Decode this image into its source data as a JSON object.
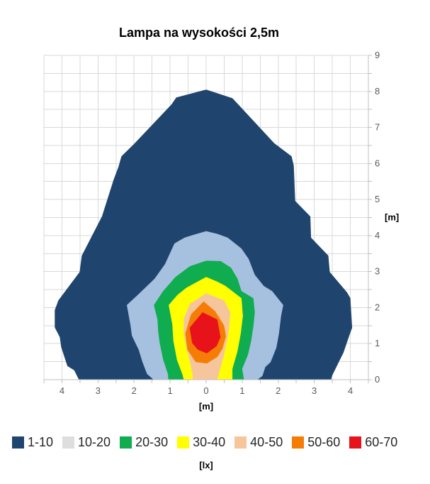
{
  "chart_data": {
    "type": "contour",
    "title": "Lampa na wysokości 2,5m",
    "xlabel": "[m]",
    "ylabel": "[m]",
    "unit_label": "[lx]",
    "x_range": [
      -4.5,
      4.5
    ],
    "y_range": [
      0,
      9
    ],
    "grid_step": 0.5,
    "grid_on": true,
    "grid_color": "#D9D9D9",
    "axis_color": "#BFBFBF",
    "tick_label_color": "#595959",
    "x_tick_values": [
      -4,
      -3,
      -2,
      -1,
      0,
      1,
      2,
      3,
      4
    ],
    "x_tick_labels": [
      "4",
      "3",
      "2",
      "1",
      "0",
      "1",
      "2",
      "3",
      "4"
    ],
    "y_tick_values": [
      0,
      1,
      2,
      3,
      4,
      5,
      6,
      7,
      8,
      9
    ],
    "y_tick_labels": [
      "0",
      "1",
      "2",
      "3",
      "4",
      "5",
      "6",
      "7",
      "8",
      "9"
    ],
    "legend_position": "bottom",
    "bands": [
      {
        "label": "1-10",
        "value_range": [
          1,
          10
        ],
        "color": "#1F456E",
        "legend_color": "#1F456E",
        "polygon": [
          [
            -3.53,
            0
          ],
          [
            -3.66,
            0.26
          ],
          [
            -3.85,
            0.38
          ],
          [
            -4.02,
            0.9
          ],
          [
            -4.06,
            1.18
          ],
          [
            -4.2,
            1.45
          ],
          [
            -4.2,
            1.93
          ],
          [
            -4.1,
            2.2
          ],
          [
            -3.51,
            2.99
          ],
          [
            -3.45,
            3.44
          ],
          [
            -2.89,
            4.53
          ],
          [
            -2.56,
            5.57
          ],
          [
            -2.43,
            5.91
          ],
          [
            -2.35,
            6.2
          ],
          [
            -2.0,
            6.54
          ],
          [
            -0.96,
            7.64
          ],
          [
            -0.83,
            7.83
          ],
          [
            0.0,
            8.05
          ],
          [
            0.73,
            7.81
          ],
          [
            0.89,
            7.64
          ],
          [
            1.89,
            6.56
          ],
          [
            2.37,
            6.2
          ],
          [
            2.43,
            5.94
          ],
          [
            2.47,
            4.96
          ],
          [
            2.89,
            4.53
          ],
          [
            2.91,
            3.94
          ],
          [
            3.39,
            3.44
          ],
          [
            3.43,
            2.99
          ],
          [
            3.91,
            2.42
          ],
          [
            4.0,
            2.26
          ],
          [
            4.05,
            1.44
          ],
          [
            3.97,
            1.22
          ],
          [
            3.81,
            0.75
          ],
          [
            3.68,
            0.49
          ],
          [
            3.49,
            0.1
          ],
          [
            3.47,
            0
          ]
        ]
      },
      {
        "label": "10-20",
        "value_range": [
          10,
          20
        ],
        "color": "#A6C0DF",
        "legend_color": "#DEDEDE",
        "polygon": [
          [
            -1.46,
            0
          ],
          [
            -1.64,
            0.16
          ],
          [
            -1.77,
            0.5
          ],
          [
            -1.87,
            0.83
          ],
          [
            -2.06,
            1.22
          ],
          [
            -2.1,
            1.52
          ],
          [
            -2.2,
            2.07
          ],
          [
            -1.9,
            2.35
          ],
          [
            -1.43,
            2.8
          ],
          [
            -1.14,
            3.21
          ],
          [
            -0.88,
            3.78
          ],
          [
            -0.6,
            3.94
          ],
          [
            -0.35,
            4.02
          ],
          [
            0.0,
            4.12
          ],
          [
            0.3,
            4.05
          ],
          [
            0.6,
            3.94
          ],
          [
            0.98,
            3.64
          ],
          [
            1.18,
            3.35
          ],
          [
            1.35,
            2.91
          ],
          [
            1.6,
            2.6
          ],
          [
            1.83,
            2.46
          ],
          [
            2.14,
            2.07
          ],
          [
            2.08,
            1.77
          ],
          [
            2.02,
            1.28
          ],
          [
            1.95,
            0.89
          ],
          [
            1.79,
            0.49
          ],
          [
            1.64,
            0.35
          ],
          [
            1.56,
            0.1
          ],
          [
            1.42,
            0
          ]
        ]
      },
      {
        "label": "20-30",
        "value_range": [
          20,
          30
        ],
        "color": "#0FAC50",
        "legend_color": "#0FAC50",
        "polygon": [
          [
            -1.05,
            0
          ],
          [
            -1.06,
            0.15
          ],
          [
            -1.19,
            0.55
          ],
          [
            -1.29,
            1.02
          ],
          [
            -1.33,
            1.34
          ],
          [
            -1.35,
            1.67
          ],
          [
            -1.45,
            2.07
          ],
          [
            -1.2,
            2.45
          ],
          [
            -0.85,
            2.85
          ],
          [
            -0.45,
            3.15
          ],
          [
            0.0,
            3.3
          ],
          [
            0.4,
            3.29
          ],
          [
            0.69,
            3.11
          ],
          [
            0.87,
            2.8
          ],
          [
            0.98,
            2.46
          ],
          [
            1.31,
            2.26
          ],
          [
            1.35,
            1.87
          ],
          [
            1.31,
            1.48
          ],
          [
            1.25,
            1.08
          ],
          [
            1.16,
            0.69
          ],
          [
            1.0,
            0.3
          ],
          [
            1.05,
            0
          ]
        ]
      },
      {
        "label": "30-40",
        "value_range": [
          30,
          40
        ],
        "color": "#FFFF00",
        "legend_color": "#FFFF00",
        "polygon": [
          [
            -0.62,
            0
          ],
          [
            -0.66,
            0.15
          ],
          [
            -0.81,
            0.55
          ],
          [
            -0.91,
            1.08
          ],
          [
            -0.94,
            1.54
          ],
          [
            -1.04,
            2.07
          ],
          [
            -0.8,
            2.35
          ],
          [
            -0.55,
            2.55
          ],
          [
            0.0,
            2.85
          ],
          [
            0.31,
            2.72
          ],
          [
            0.54,
            2.6
          ],
          [
            0.98,
            2.26
          ],
          [
            1.02,
            1.77
          ],
          [
            0.96,
            1.28
          ],
          [
            0.87,
            0.79
          ],
          [
            0.73,
            0.3
          ],
          [
            0.73,
            0
          ]
        ]
      },
      {
        "label": "40-50",
        "value_range": [
          40,
          50
        ],
        "color": "#F7C59B",
        "legend_color": "#F7C59B",
        "polygon": [
          [
            -0.37,
            0
          ],
          [
            -0.38,
            0.15
          ],
          [
            -0.45,
            0.5
          ],
          [
            -0.55,
            0.9
          ],
          [
            -0.62,
            1.3
          ],
          [
            -0.62,
            1.7
          ],
          [
            -0.45,
            2.1
          ],
          [
            0.0,
            2.4
          ],
          [
            0.5,
            2.2
          ],
          [
            0.67,
            1.87
          ],
          [
            0.64,
            1.48
          ],
          [
            0.58,
            1.08
          ],
          [
            0.5,
            0.69
          ],
          [
            0.39,
            0.3
          ],
          [
            0.31,
            0
          ]
        ]
      },
      {
        "label": "50-60",
        "value_range": [
          50,
          60
        ],
        "color": "#F57D05",
        "legend_color": "#F57D05",
        "polygon": [
          [
            0.02,
            0.45
          ],
          [
            -0.29,
            0.49
          ],
          [
            -0.52,
            0.83
          ],
          [
            -0.58,
            1.28
          ],
          [
            -0.42,
            1.81
          ],
          [
            -0.07,
            2.17
          ],
          [
            0.25,
            1.9
          ],
          [
            0.5,
            1.5
          ],
          [
            0.55,
            1.2
          ],
          [
            0.45,
            0.85
          ],
          [
            0.31,
            0.63
          ]
        ]
      },
      {
        "label": "60-70",
        "value_range": [
          60,
          70
        ],
        "color": "#E8121B",
        "legend_color": "#E8121B",
        "polygon": [
          [
            0.02,
            0.73
          ],
          [
            -0.23,
            0.83
          ],
          [
            -0.39,
            1.02
          ],
          [
            -0.46,
            1.44
          ],
          [
            -0.1,
            1.87
          ],
          [
            0.31,
            1.67
          ],
          [
            0.4,
            1.18
          ],
          [
            0.29,
            0.93
          ]
        ]
      }
    ]
  }
}
